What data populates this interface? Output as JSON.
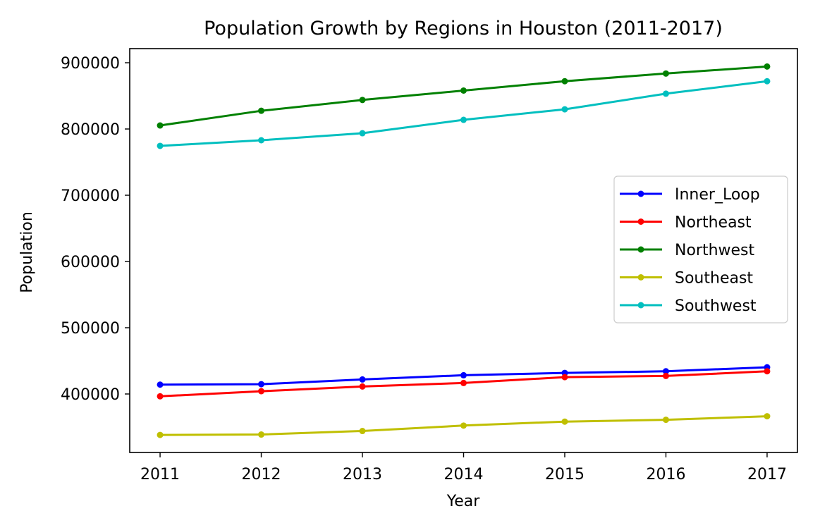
{
  "chart_data": {
    "type": "line",
    "title": "Population Growth by Regions in Houston (2011-2017)",
    "xlabel": "Year",
    "ylabel": "Population",
    "x": [
      2011,
      2012,
      2013,
      2014,
      2015,
      2016,
      2017
    ],
    "x_tick_labels": [
      "2011",
      "2012",
      "2013",
      "2014",
      "2015",
      "2016",
      "2017"
    ],
    "y_ticks": [
      400000,
      500000,
      600000,
      700000,
      800000,
      900000
    ],
    "y_tick_labels": [
      "400000",
      "500000",
      "600000",
      "700000",
      "800000",
      "900000"
    ],
    "xlim": [
      2010.7,
      2017.3
    ],
    "ylim": [
      311700,
      921300
    ],
    "grid": false,
    "legend_position": "center-right",
    "marker": "point",
    "series": [
      {
        "name": "Inner_Loop",
        "color": "#0000ff",
        "values": [
          414100,
          414800,
          421900,
          428300,
          431800,
          434300,
          440300
        ]
      },
      {
        "name": "Northeast",
        "color": "#ff0000",
        "values": [
          396500,
          404200,
          411300,
          416600,
          425400,
          427200,
          434300
        ]
      },
      {
        "name": "Northwest",
        "color": "#008000",
        "values": [
          805300,
          827500,
          843800,
          858000,
          872100,
          883700,
          894300
        ]
      },
      {
        "name": "Southeast",
        "color": "#bfbf00",
        "values": [
          338200,
          338800,
          344100,
          352300,
          358300,
          361100,
          366400
        ]
      },
      {
        "name": "Southwest",
        "color": "#00bfbf",
        "values": [
          774500,
          783000,
          793600,
          813800,
          829700,
          853300,
          872100
        ]
      }
    ]
  }
}
